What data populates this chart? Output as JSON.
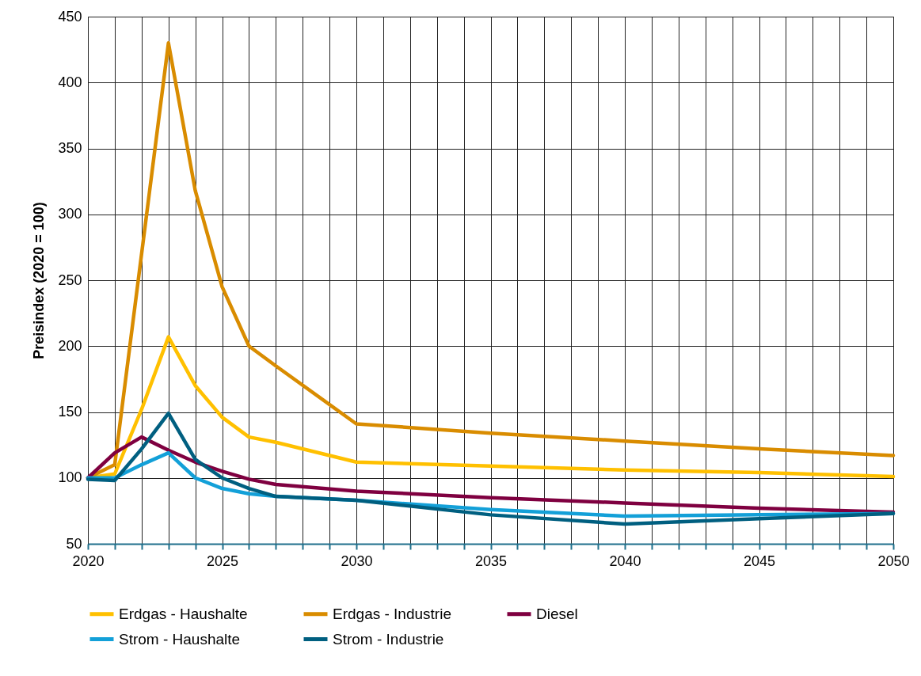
{
  "chart_data": {
    "type": "line",
    "ylabel": "Preisindex (2020 = 100)",
    "x": [
      2020,
      2021,
      2022,
      2023,
      2024,
      2025,
      2026,
      2027,
      2030,
      2035,
      2040,
      2045,
      2050
    ],
    "series": [
      {
        "name": "Erdgas - Haushalte",
        "color": "#ffc000",
        "values": [
          100,
          103,
          152,
          207,
          170,
          146,
          131,
          127,
          112,
          109,
          106,
          104,
          101
        ]
      },
      {
        "name": "Erdgas - Industrie",
        "color": "#d98c00",
        "values": [
          100,
          110,
          270,
          430,
          318,
          245,
          200,
          185,
          141,
          134,
          128,
          122,
          117
        ]
      },
      {
        "name": "Diesel",
        "color": "#7f0040",
        "values": [
          100,
          119,
          131,
          121,
          112,
          105,
          99,
          95,
          90,
          85,
          81,
          77,
          74
        ]
      },
      {
        "name": "Strom - Haushalte",
        "color": "#13a0d8",
        "values": [
          100,
          100,
          110,
          119,
          100,
          92,
          88,
          86,
          83,
          76,
          71,
          72,
          73
        ]
      },
      {
        "name": "Strom - Industrie",
        "color": "#005f80",
        "values": [
          99,
          98,
          122,
          149,
          114,
          100,
          92,
          86,
          83,
          72,
          65,
          69,
          73
        ]
      }
    ],
    "xlim": [
      2020,
      2050
    ],
    "xticks": [
      2020,
      {
        "value": 2021,
        "label": null
      },
      {
        "value": 2022,
        "label": null
      },
      {
        "value": 2023,
        "label": null
      },
      {
        "value": 2024,
        "label": null
      },
      2025,
      {
        "value": 2026,
        "label": null
      },
      {
        "value": 2027,
        "label": null
      },
      {
        "value": 2028,
        "label": null
      },
      {
        "value": 2029,
        "label": null
      },
      2030,
      {
        "value": 2031,
        "label": null
      },
      {
        "value": 2032,
        "label": null
      },
      {
        "value": 2033,
        "label": null
      },
      {
        "value": 2034,
        "label": null
      },
      2035,
      {
        "value": 2036,
        "label": null
      },
      {
        "value": 2037,
        "label": null
      },
      {
        "value": 2038,
        "label": null
      },
      {
        "value": 2039,
        "label": null
      },
      2040,
      {
        "value": 2041,
        "label": null
      },
      {
        "value": 2042,
        "label": null
      },
      {
        "value": 2043,
        "label": null
      },
      {
        "value": 2044,
        "label": null
      },
      2045,
      {
        "value": 2046,
        "label": null
      },
      {
        "value": 2047,
        "label": null
      },
      {
        "value": 2048,
        "label": null
      },
      {
        "value": 2049,
        "label": null
      },
      2050
    ],
    "ylim": [
      50,
      450
    ],
    "yticks": [
      50,
      100,
      150,
      200,
      250,
      300,
      350,
      400,
      450
    ],
    "grid": true,
    "legend": "bottom",
    "line_style": "solid"
  }
}
